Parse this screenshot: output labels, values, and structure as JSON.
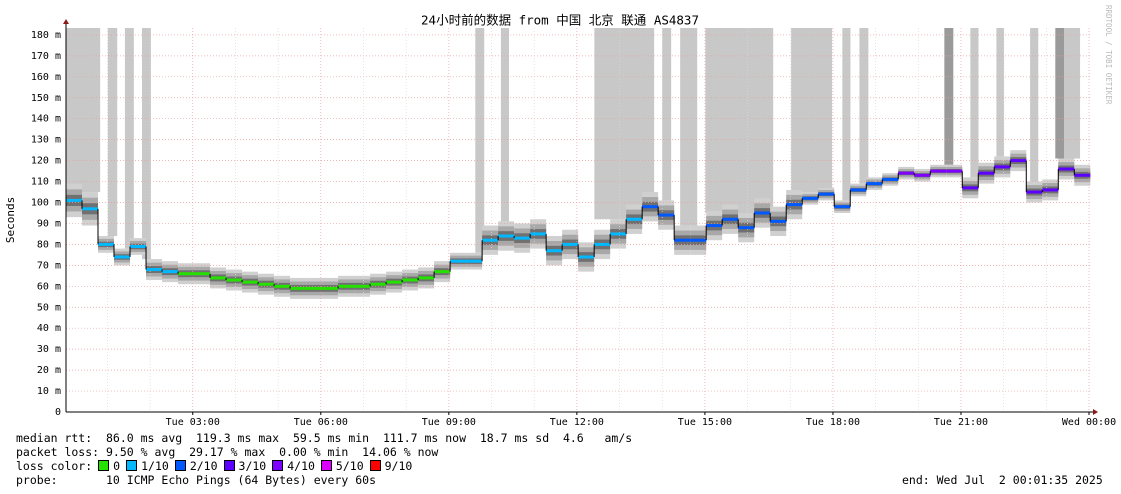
{
  "chart_data": {
    "type": "smokeping",
    "title": "24小时前的数据 from 中国 北京 联通 AS4837",
    "y_label": "Seconds",
    "watermark": "RRDTOOL / TOBI OETIKER",
    "xlim": [
      0.03,
      24.07
    ],
    "ylim": [
      0,
      183.3
    ],
    "xticks": [
      {
        "value": 3,
        "label": "Tue 03:00"
      },
      {
        "value": 6,
        "label": "Tue 06:00"
      },
      {
        "value": 9,
        "label": "Tue 09:00"
      },
      {
        "value": 12,
        "label": "Tue 12:00"
      },
      {
        "value": 15,
        "label": "Tue 15:00"
      },
      {
        "value": 18,
        "label": "Tue 18:00"
      },
      {
        "value": 21,
        "label": "Tue 21:00"
      },
      {
        "value": 24,
        "label": "Wed 00:00"
      }
    ],
    "xminorticks": [
      1,
      2,
      4,
      5,
      7,
      8,
      10,
      11,
      13,
      14,
      16,
      17,
      19,
      20,
      22,
      23
    ],
    "yticks": [
      0,
      {
        "value": 10,
        "label": "10 m"
      },
      {
        "value": 20,
        "label": "20 m"
      },
      {
        "value": 30,
        "label": "30 m"
      },
      {
        "value": 40,
        "label": "40 m"
      },
      {
        "value": 50,
        "label": "50 m"
      },
      {
        "value": 60,
        "label": "60 m"
      },
      {
        "value": 70,
        "label": "70 m"
      },
      {
        "value": 80,
        "label": "80 m"
      },
      {
        "value": 90,
        "label": "90 m"
      },
      {
        "value": 100,
        "label": "100 m"
      },
      {
        "value": 110,
        "label": "110 m"
      },
      {
        "value": 120,
        "label": "120 m"
      },
      {
        "value": 130,
        "label": "130 m"
      },
      {
        "value": 140,
        "label": "140 m"
      },
      {
        "value": 150,
        "label": "150 m"
      },
      {
        "value": 160,
        "label": "160 m"
      },
      {
        "value": 170,
        "label": "170 m"
      },
      {
        "value": 180,
        "label": "180 m"
      }
    ],
    "grid": true,
    "series": [
      {
        "name": "median rtt",
        "x": [
          0.03,
          0.405,
          0.78,
          1.155,
          1.53,
          1.905,
          2.28,
          2.655,
          3.03,
          3.405,
          3.78,
          4.155,
          4.53,
          4.905,
          5.28,
          5.655,
          6.03,
          6.405,
          6.78,
          7.155,
          7.53,
          7.905,
          8.28,
          8.655,
          9.03,
          9.405,
          9.78,
          10.155,
          10.53,
          10.905,
          11.28,
          11.655,
          12.03,
          12.405,
          12.78,
          13.155,
          13.53,
          13.905,
          14.28,
          14.655,
          15.03,
          15.405,
          15.78,
          16.155,
          16.53,
          16.905,
          17.28,
          17.655,
          18.03,
          18.405,
          18.78,
          19.155,
          19.53,
          19.905,
          20.28,
          20.655,
          21.03,
          21.405,
          21.78,
          22.155,
          22.53,
          22.905,
          23.28,
          23.655
        ],
        "values": [
          101,
          97,
          80,
          74,
          79,
          68,
          67,
          66,
          66,
          64,
          63,
          62,
          61,
          60,
          59,
          59,
          59,
          60,
          60,
          61,
          62,
          63,
          64,
          67,
          72,
          72,
          82,
          84,
          83,
          85,
          77,
          80,
          74,
          80,
          85,
          92,
          98,
          94,
          82,
          82,
          89,
          92,
          88,
          95,
          91,
          99,
          102,
          104,
          98,
          106,
          109,
          111,
          114,
          113,
          115,
          115,
          107,
          114,
          117,
          120,
          105,
          106,
          116,
          113
        ],
        "spread": [
          8,
          8,
          4,
          4,
          4,
          5,
          5,
          5,
          5,
          5,
          5,
          5,
          5,
          5,
          5,
          5,
          5,
          5,
          5,
          5,
          5,
          5,
          5,
          5,
          4,
          4,
          7,
          7,
          7,
          7,
          7,
          7,
          7,
          7,
          7,
          7,
          7,
          7,
          7,
          7,
          7,
          7,
          7,
          7,
          7,
          7,
          3,
          3,
          3,
          3,
          3,
          3,
          3,
          3,
          3,
          3,
          5,
          5,
          5,
          5,
          5,
          5,
          5,
          5
        ],
        "loss": [
          1,
          1,
          1,
          1,
          1,
          1,
          1,
          0,
          0,
          0,
          0,
          0,
          0,
          0,
          0,
          0,
          0,
          0,
          0,
          0,
          0,
          0,
          0,
          0,
          1,
          1,
          1,
          1,
          1,
          1,
          1,
          1,
          1,
          1,
          1,
          1,
          2,
          2,
          2,
          2,
          2,
          2,
          2,
          2,
          2,
          2,
          2,
          2,
          2,
          2,
          2,
          2,
          4,
          4,
          4,
          4,
          3,
          3,
          3,
          3,
          3,
          3,
          3,
          3
        ]
      }
    ],
    "loss_periods": [
      {
        "start": 0.03,
        "end": 0.83,
        "color": "#c8c8c8"
      },
      {
        "start": 1.01,
        "end": 1.23,
        "color": "#c8c8c8"
      },
      {
        "start": 1.41,
        "end": 1.62,
        "color": "#c8c8c8"
      },
      {
        "start": 1.81,
        "end": 2.02,
        "color": "#c8c8c8"
      },
      {
        "start": 9.62,
        "end": 9.83,
        "color": "#c8c8c8"
      },
      {
        "start": 10.22,
        "end": 10.41,
        "color": "#c8c8c8"
      },
      {
        "start": 12.41,
        "end": 13.81,
        "color": "#c8c8c8"
      },
      {
        "start": 14.0,
        "end": 14.21,
        "color": "#c8c8c8"
      },
      {
        "start": 14.42,
        "end": 14.82,
        "color": "#c8c8c8"
      },
      {
        "start": 15.01,
        "end": 16.6,
        "color": "#c8c8c8"
      },
      {
        "start": 17.02,
        "end": 17.98,
        "color": "#c8c8c8"
      },
      {
        "start": 18.22,
        "end": 18.41,
        "color": "#c8c8c8"
      },
      {
        "start": 18.62,
        "end": 18.83,
        "color": "#c8c8c8"
      },
      {
        "start": 20.61,
        "end": 20.82,
        "color": "#9a9a9a"
      },
      {
        "start": 21.22,
        "end": 21.41,
        "color": "#c8c8c8"
      },
      {
        "start": 21.83,
        "end": 22.01,
        "color": "#c8c8c8"
      },
      {
        "start": 22.62,
        "end": 22.81,
        "color": "#c8c8c8"
      },
      {
        "start": 23.21,
        "end": 23.42,
        "color": "#9a9a9a"
      },
      {
        "start": 23.42,
        "end": 23.79,
        "color": "#c8c8c8"
      }
    ],
    "loss_legend_title": "loss color:",
    "loss_colors": [
      {
        "name": "0",
        "color": "#26e000"
      },
      {
        "name": "1/10",
        "color": "#00b8ff"
      },
      {
        "name": "2/10",
        "color": "#0059ff"
      },
      {
        "name": "3/10",
        "color": "#5e00ff"
      },
      {
        "name": "4/10",
        "color": "#7e00ff"
      },
      {
        "name": "5/10",
        "color": "#dd00ff"
      },
      {
        "name": "9/10",
        "color": "#ff0000"
      }
    ],
    "stats_rtt": "median rtt:  86.0 ms avg  119.3 ms max  59.5 ms min  111.7 ms now  18.7 ms sd  4.6   am/s",
    "stats_loss": "packet loss: 9.50 % avg  29.17 % max  0.00 % min  14.06 % now",
    "probe": "probe:       10 ICMP Echo Pings (64 Bytes) every 60s",
    "end": "end: Wed Jul  2 00:01:35 2025"
  }
}
